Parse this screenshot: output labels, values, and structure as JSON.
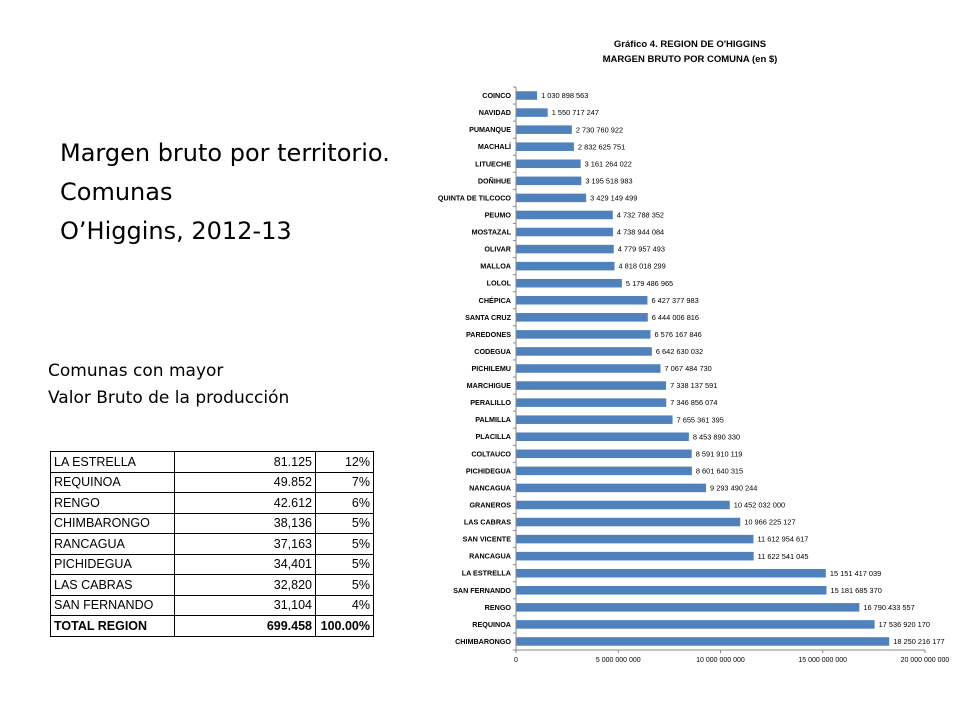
{
  "heading": {
    "line1": "Margen bruto por territorio.",
    "line2": "Comunas",
    "line3": "O’Higgins, 2012-13"
  },
  "subheading": {
    "line1": "Comunas con mayor",
    "line2": "Valor Bruto de la producción"
  },
  "table": {
    "rows": [
      {
        "name": "LA ESTRELLA",
        "value": "81.125",
        "pct": "12%"
      },
      {
        "name": "REQUINOA",
        "value": "49.852",
        "pct": "7%"
      },
      {
        "name": "RENGO",
        "value": "42.612",
        "pct": "6%"
      },
      {
        "name": "CHIMBARONGO",
        "value": "38,136",
        "pct": "5%"
      },
      {
        "name": "RANCAGUA",
        "value": "37,163",
        "pct": "5%"
      },
      {
        "name": "PICHIDEGUA",
        "value": "34,401",
        "pct": "5%"
      },
      {
        "name": "LAS CABRAS",
        "value": "32,820",
        "pct": "5%"
      },
      {
        "name": "SAN FERNANDO",
        "value": "31,104",
        "pct": "4%"
      }
    ],
    "total": {
      "name": "TOTAL REGION",
      "value": "699.458",
      "pct": "100.00%"
    }
  },
  "chart_data": {
    "type": "bar",
    "orientation": "horizontal",
    "title": "Gráfico 4. REGION DE O'HIGGINS",
    "subtitle": "MARGEN BRUTO POR COMUNA (en $)",
    "categories": [
      "COINCO",
      "NAVIDAD",
      "PUMANQUE",
      "MACHALÍ",
      "LITUECHE",
      "DOÑIHUE",
      "QUINTA DE TILCOCO",
      "PEUMO",
      "MOSTAZAL",
      "OLIVAR",
      "MALLOA",
      "LOLOL",
      "CHÉPICA",
      "SANTA CRUZ",
      "PAREDONES",
      "CODEGUA",
      "PICHILEMU",
      "MARCHIGUE",
      "PERALILLO",
      "PALMILLA",
      "PLACILLA",
      "COLTAUCO",
      "PICHIDEGUA",
      "NANCAGUA",
      "GRANEROS",
      "LAS CABRAS",
      "SAN VICENTE",
      "RANCAGUA",
      "LA ESTRELLA",
      "SAN FERNANDO",
      "RENGO",
      "REQUINOA",
      "CHIMBARONGO"
    ],
    "values": [
      1030898563,
      1550717247,
      2730760922,
      2832625751,
      3161264022,
      3195518983,
      3429149499,
      4732788352,
      4738944084,
      4779957493,
      4818018299,
      5179486965,
      6427377983,
      6444006816,
      6576167846,
      6642630032,
      7067484730,
      7338137591,
      7346856074,
      7655361395,
      8453890330,
      8591910119,
      8601640315,
      9293490244,
      10452032000,
      10966225127,
      11612954617,
      11622541045,
      15151417039,
      15181685370,
      16790433557,
      17536920170,
      18250216177
    ],
    "value_labels": [
      "1 030 898 563",
      "1 550 717 247",
      "2 730 760 922",
      "2 832 625 751",
      "3 161 264 022",
      "3 195 518 983",
      "3 429 149 499",
      "4 732 788 352",
      "4 738 944 084",
      "4 779 957 493",
      "4 818 018 299",
      "5 179 486 965",
      "6 427 377 983",
      "6 444 006 816",
      "6 576 167 846",
      "6 642 630 032",
      "7 067 484 730",
      "7 338 137 591",
      "7 346 856 074",
      "7 655 361 395",
      "8 453 890 330",
      "8 591 910 119",
      "8 601 640 315",
      "9 293 490 244",
      "10 452 032 000",
      "10 966 225 127",
      "11 612 954 617",
      "11 622 541 045",
      "15 151 417 039",
      "15 181 685 370",
      "16 790 433 557",
      "17 536 920 170",
      "18 250 216 177"
    ],
    "xlim": [
      0,
      20000000000
    ],
    "x_ticks": [
      0,
      5000000000,
      10000000000,
      15000000000,
      20000000000
    ],
    "x_tick_labels": [
      "0",
      "5 000 000 000",
      "10 000 000 000",
      "15 000 000 000",
      "20 000 000 000"
    ],
    "bar_color": "#4f81bd",
    "grid": false,
    "legend": "none"
  }
}
